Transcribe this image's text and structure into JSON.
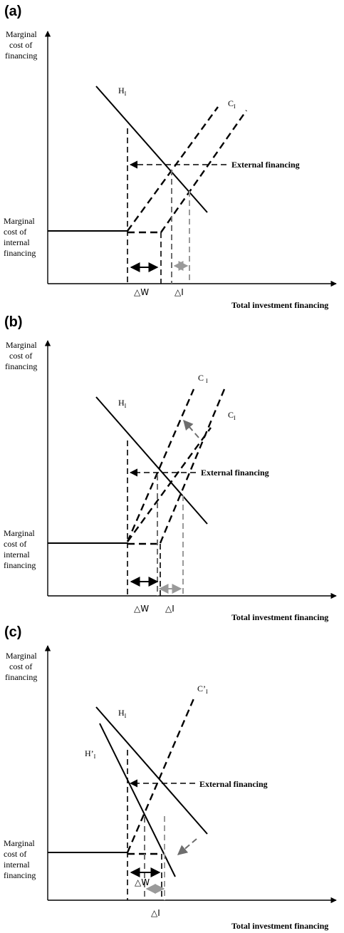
{
  "panels": [
    {
      "label": "(a)",
      "y_axis_label": [
        "Marginal",
        "cost of",
        "financing"
      ],
      "internal_label": [
        "Marginal",
        "cost of",
        "internal",
        "financing"
      ],
      "x_axis_label": "Total investment financing",
      "external_label": "External financing",
      "h_label": "H",
      "h_sub": "I",
      "c_label": "C",
      "c_sub": "I",
      "delta_w": "△W",
      "delta_i": "△I"
    },
    {
      "label": "(b)",
      "y_axis_label": [
        "Marginal",
        "cost of",
        "financing"
      ],
      "internal_label": [
        "Marginal",
        "cost of",
        "internal",
        "financing"
      ],
      "x_axis_label": "Total investment financing",
      "external_label": "External financing",
      "h_label": "H",
      "h_sub": "I",
      "c1_label": "C ",
      "c1_sub": "I",
      "c2_label": "C",
      "c2_sub": "I",
      "delta_w": "△W",
      "delta_i": "△I"
    },
    {
      "label": "(c)",
      "y_axis_label": [
        "Marginal",
        "cost of",
        "financing"
      ],
      "internal_label": [
        "Marginal",
        "cost of",
        "internal",
        "financing"
      ],
      "x_axis_label": "Total investment financing",
      "external_label": "External financing",
      "h_label": "H",
      "h_sub": "I",
      "hp_label": "H’",
      "hp_sub": "I",
      "c_label": "C’",
      "c_sub": "I",
      "delta_w": "△W",
      "delta_i": "△I"
    }
  ]
}
